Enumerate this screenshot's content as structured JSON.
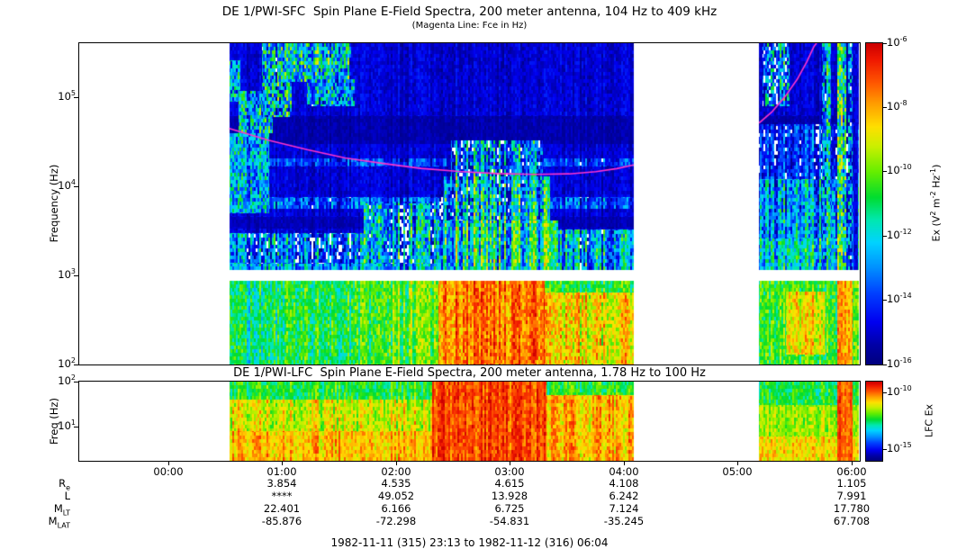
{
  "page": {
    "footer": "1982-11-11 (315) 23:13 to 1982-11-12 (316) 06:04"
  },
  "time_axis": {
    "start_label": "23:13",
    "end_label": "06:04",
    "duration_min": 411,
    "ticks": [
      {
        "label": "00:00",
        "min": 47
      },
      {
        "label": "01:00",
        "min": 107
      },
      {
        "label": "02:00",
        "min": 167
      },
      {
        "label": "03:00",
        "min": 227
      },
      {
        "label": "04:00",
        "min": 287
      },
      {
        "label": "05:00",
        "min": 347
      },
      {
        "label": "06:00",
        "min": 407
      }
    ]
  },
  "colormap_stops": [
    [
      0.0,
      "#000080"
    ],
    [
      0.06,
      "#0000a8"
    ],
    [
      0.13,
      "#0000f0"
    ],
    [
      0.22,
      "#0040ff"
    ],
    [
      0.3,
      "#0090ff"
    ],
    [
      0.38,
      "#00d4ff"
    ],
    [
      0.45,
      "#00e8b0"
    ],
    [
      0.52,
      "#00dd30"
    ],
    [
      0.6,
      "#66ee00"
    ],
    [
      0.68,
      "#ccf000"
    ],
    [
      0.74,
      "#ffe000"
    ],
    [
      0.81,
      "#ffa000"
    ],
    [
      0.88,
      "#ff5500"
    ],
    [
      0.95,
      "#f01800"
    ],
    [
      1.0,
      "#cc0000"
    ]
  ],
  "chart_data": [
    {
      "id": "sfc",
      "type": "heatmap",
      "title": "DE 1/PWI-SFC  Spin Plane E-Field Spectra, 200 meter antenna, 104 Hz to 409 kHz",
      "subtitle": "(Magenta Line: Fce in Hz)",
      "ylabel": "Frequency (Hz)",
      "yscale": "log",
      "ymin_hz": 100,
      "ymax_hz": 409000,
      "ytick_exps": [
        2,
        3,
        4,
        5
      ],
      "colorbar": {
        "label_parts": [
          {
            "t": "Ex (V"
          },
          {
            "sup": "2"
          },
          {
            "t": " m"
          },
          {
            "sup": "-2"
          },
          {
            "t": " Hz"
          },
          {
            "sup": "-1"
          },
          {
            "t": ")"
          }
        ],
        "tick_exps": [
          -6,
          -8,
          -10,
          -12,
          -14,
          -16
        ],
        "top_exp": -6,
        "bottom_exp": -16
      },
      "data_segments_min": [
        [
          79,
          292
        ],
        [
          358,
          410.5
        ]
      ],
      "gap_band_hz": [
        880,
        1150
      ],
      "fce_line": {
        "color": "#ff33cc",
        "segments": [
          [
            [
              79,
              45000
            ],
            [
              100,
              33000
            ],
            [
              120,
              26000
            ],
            [
              140,
              21000
            ],
            [
              160,
              18200
            ],
            [
              180,
              16000
            ],
            [
              200,
              14800
            ],
            [
              220,
              14000
            ],
            [
              240,
              13700
            ],
            [
              258,
              13900
            ],
            [
              272,
              14700
            ],
            [
              283,
              15900
            ],
            [
              292,
              17500
            ]
          ],
          [
            [
              358,
              52000
            ],
            [
              365,
              70000
            ],
            [
              372,
              105000
            ],
            [
              378,
              160000
            ],
            [
              383,
              250000
            ],
            [
              387,
              380000
            ],
            [
              389,
              430000
            ]
          ]
        ]
      },
      "features": [
        {
          "name": "upper-band-background",
          "t": [
            0,
            411
          ],
          "f": [
            1150,
            409000
          ],
          "v": 0.1,
          "n": 0.05,
          "cn": 0.04
        },
        {
          "name": "dark-band-30-60kHz",
          "t": [
            0,
            411
          ],
          "f": [
            30000,
            62000
          ],
          "v": 0.06,
          "n": 0.03,
          "cn": 0.02
        },
        {
          "name": "dark-band-4kHz",
          "t": [
            0,
            411
          ],
          "f": [
            3400,
            4600
          ],
          "v": 0.07,
          "n": 0.03,
          "cn": 0.02
        },
        {
          "name": "narrowband-1.2kHz",
          "t": [
            79,
            292
          ],
          "f": [
            1150,
            1360
          ],
          "v": 0.3,
          "n": 0.12,
          "cn": 0.16
        },
        {
          "name": "hiss-band-6kHz",
          "t": [
            95,
            292
          ],
          "f": [
            5600,
            7600
          ],
          "v": 0.21,
          "n": 0.12,
          "cn": 0.14
        },
        {
          "name": "band-20kHz",
          "t": [
            79,
            292
          ],
          "f": [
            17000,
            20500
          ],
          "v": 0.18,
          "n": 0.1,
          "cn": 0.12
        },
        {
          "name": "akr-patch-0",
          "t": [
            79,
            85
          ],
          "f": [
            90000,
            260000
          ],
          "v": 0.3,
          "n": 0.22,
          "cn": 0.12
        },
        {
          "name": "akr-patch-1",
          "t": [
            84,
            102
          ],
          "f": [
            40000,
            120000
          ],
          "v": 0.33,
          "n": 0.22,
          "cn": 0.12
        },
        {
          "name": "akr-streaks",
          "t": [
            96,
            112
          ],
          "f": [
            60000,
            409000
          ],
          "v": 0.3,
          "n": 0.28,
          "cn": 0.14
        },
        {
          "name": "akr-patch-2",
          "t": [
            105,
            143
          ],
          "f": [
            150000,
            409000
          ],
          "v": 0.38,
          "n": 0.24,
          "cn": 0.12
        },
        {
          "name": "akr-patch-3",
          "t": [
            120,
            145
          ],
          "f": [
            80000,
            160000
          ],
          "v": 0.3,
          "n": 0.24,
          "cn": 0.12
        },
        {
          "name": "left-midfreq-emission",
          "t": [
            79,
            100
          ],
          "f": [
            5000,
            40000
          ],
          "v": 0.32,
          "n": 0.18,
          "cn": 0.1
        },
        {
          "name": "left-lowfreq-speckle",
          "t": [
            79,
            188
          ],
          "f": [
            1360,
            3000
          ],
          "v": 0.2,
          "n": 0.18,
          "cn": 0.24
        },
        {
          "name": "scattered-bursts-pre",
          "t": [
            150,
            192
          ],
          "f": [
            1360,
            6500
          ],
          "v": 0.25,
          "n": 0.2,
          "cn": 0.28
        },
        {
          "name": "burst-low",
          "t": [
            188,
            252
          ],
          "f": [
            1150,
            4200
          ],
          "v": 0.44,
          "n": 0.16,
          "cn": 0.26
        },
        {
          "name": "burst-mid",
          "t": [
            192,
            248
          ],
          "f": [
            4200,
            13000
          ],
          "v": 0.35,
          "n": 0.2,
          "cn": 0.26
        },
        {
          "name": "burst-high",
          "t": [
            196,
            244
          ],
          "f": [
            13000,
            33000
          ],
          "v": 0.25,
          "n": 0.2,
          "cn": 0.22
        },
        {
          "name": "post-burst",
          "t": [
            252,
            292
          ],
          "f": [
            1150,
            3300
          ],
          "v": 0.3,
          "n": 0.16,
          "cn": 0.22
        },
        {
          "name": "low-band-base",
          "t": [
            0,
            411
          ],
          "f": [
            100,
            880
          ],
          "v": 0.52,
          "n": 0.1,
          "cn": 0.09
        },
        {
          "name": "low-band-left-cool",
          "t": [
            79,
            108
          ],
          "f": [
            100,
            880
          ],
          "v": 0.46,
          "n": 0.1,
          "cn": 0.1
        },
        {
          "name": "low-band-prewarm",
          "t": [
            160,
            189
          ],
          "f": [
            100,
            880
          ],
          "v": 0.58,
          "n": 0.1,
          "cn": 0.1
        },
        {
          "name": "low-band-intense",
          "t": [
            189,
            245
          ],
          "f": [
            100,
            880
          ],
          "v": 0.85,
          "n": 0.09,
          "cn": 0.09
        },
        {
          "name": "low-band-post",
          "t": [
            245,
            292
          ],
          "f": [
            100,
            640
          ],
          "v": 0.72,
          "n": 0.11,
          "cn": 0.1
        },
        {
          "name": "right-low-band",
          "t": [
            358,
            411
          ],
          "f": [
            100,
            880
          ],
          "v": 0.56,
          "n": 0.1,
          "cn": 0.08
        },
        {
          "name": "right-low-blob",
          "t": [
            372,
            393
          ],
          "f": [
            130,
            660
          ],
          "v": 0.72,
          "n": 0.1,
          "cn": 0.08
        },
        {
          "name": "right-low-red-column",
          "t": [
            399,
            407
          ],
          "f": [
            100,
            880
          ],
          "v": 0.82,
          "n": 0.08,
          "cn": 0.06
        },
        {
          "name": "right-upper-low",
          "t": [
            358,
            411
          ],
          "f": [
            1150,
            2600
          ],
          "v": 0.4,
          "n": 0.14,
          "cn": 0.16
        },
        {
          "name": "right-upper-mid",
          "t": [
            358,
            411
          ],
          "f": [
            2600,
            12000
          ],
          "v": 0.3,
          "n": 0.16,
          "cn": 0.18
        },
        {
          "name": "right-upper-high",
          "t": [
            358,
            411
          ],
          "f": [
            12000,
            50000
          ],
          "v": 0.16,
          "n": 0.12,
          "cn": 0.15
        },
        {
          "name": "right-akr-streaks",
          "t": [
            360,
            374
          ],
          "f": [
            80000,
            409000
          ],
          "v": 0.22,
          "n": 0.26,
          "cn": 0.22
        },
        {
          "name": "right-burst-1",
          "t": [
            391,
            396
          ],
          "f": [
            1150,
            409000
          ],
          "v": 0.34,
          "n": 0.22,
          "cn": 0.14
        },
        {
          "name": "right-burst-2",
          "t": [
            399,
            404
          ],
          "f": [
            1150,
            409000
          ],
          "v": 0.46,
          "n": 0.24,
          "cn": 0.14
        },
        {
          "name": "right-burst-3",
          "t": [
            405,
            407
          ],
          "f": [
            1150,
            409000
          ],
          "v": 0.3,
          "n": 0.26,
          "cn": 0.1
        },
        {
          "name": "right-dark-column",
          "t": [
            407.5,
            410
          ],
          "f": [
            1150,
            409000
          ],
          "v": 0.1,
          "n": 0.06,
          "cn": 0.03
        }
      ]
    },
    {
      "id": "lfc",
      "type": "heatmap",
      "title": "DE 1/PWI-LFC  Spin Plane E-Field Spectra, 200 meter antenna, 1.78 Hz to 100 Hz",
      "ylabel": "Freq (Hz)",
      "yscale": "log",
      "ymin_hz": 1.78,
      "ymax_hz": 100,
      "ytick_exps": [
        1,
        2
      ],
      "colorbar": {
        "label_parts": [
          {
            "t": "LFC Ex"
          }
        ],
        "tick_exps": [
          -10,
          -15
        ],
        "top_exp": -9,
        "bottom_exp": -16
      },
      "data_segments_min": [
        [
          79,
          292
        ],
        [
          358,
          410.5
        ]
      ],
      "gap_band_hz": null,
      "fce_line": null,
      "features": [
        {
          "name": "base",
          "t": [
            0,
            411
          ],
          "f": [
            1.78,
            100
          ],
          "v": 0.64,
          "n": 0.08,
          "cn": 0.1
        },
        {
          "name": "top-green-band",
          "t": [
            0,
            411
          ],
          "f": [
            40,
            100
          ],
          "v": 0.54,
          "n": 0.08,
          "cn": 0.08
        },
        {
          "name": "mid-band",
          "t": [
            0,
            411
          ],
          "f": [
            8,
            40
          ],
          "v": 0.7,
          "n": 0.09,
          "cn": 0.1
        },
        {
          "name": "low-band",
          "t": [
            0,
            411
          ],
          "f": [
            1.78,
            8
          ],
          "v": 0.78,
          "n": 0.08,
          "cn": 0.08
        },
        {
          "name": "intense-columns",
          "t": [
            186,
            246
          ],
          "f": [
            1.78,
            100
          ],
          "v": 0.9,
          "n": 0.07,
          "cn": 0.07
        },
        {
          "name": "post-intense",
          "t": [
            246,
            292
          ],
          "f": [
            1.78,
            50
          ],
          "v": 0.78,
          "n": 0.09,
          "cn": 0.08
        },
        {
          "name": "right-top-green",
          "t": [
            358,
            411
          ],
          "f": [
            30,
            100
          ],
          "v": 0.52,
          "n": 0.08,
          "cn": 0.06
        },
        {
          "name": "right-mid",
          "t": [
            358,
            411
          ],
          "f": [
            6,
            30
          ],
          "v": 0.64,
          "n": 0.08,
          "cn": 0.06
        },
        {
          "name": "right-low",
          "t": [
            358,
            411
          ],
          "f": [
            1.78,
            6
          ],
          "v": 0.74,
          "n": 0.08,
          "cn": 0.06
        },
        {
          "name": "right-red-column",
          "t": [
            399,
            407
          ],
          "f": [
            1.78,
            100
          ],
          "v": 0.88,
          "n": 0.06,
          "cn": 0.05
        }
      ]
    }
  ],
  "ephemeris_table": {
    "rows": [
      {
        "label_parts": [
          {
            "t": "R"
          },
          {
            "sub": "e"
          }
        ],
        "values": [
          "3.854",
          "4.535",
          "4.615",
          "4.108",
          "1.105"
        ]
      },
      {
        "label_parts": [
          {
            "t": "L"
          }
        ],
        "values": [
          "****",
          "49.052",
          "13.928",
          "6.242",
          "7.991"
        ]
      },
      {
        "label_parts": [
          {
            "t": "M"
          },
          {
            "sub": "LT"
          }
        ],
        "values": [
          "22.401",
          "6.166",
          "6.725",
          "7.124",
          "17.780"
        ]
      },
      {
        "label_parts": [
          {
            "t": "M"
          },
          {
            "sub": "LAT"
          }
        ],
        "values": [
          "-85.876",
          "-72.298",
          "-54.831",
          "-35.245",
          "67.708"
        ]
      }
    ],
    "value_cols_min": [
      107,
      167,
      227,
      287,
      407
    ]
  }
}
